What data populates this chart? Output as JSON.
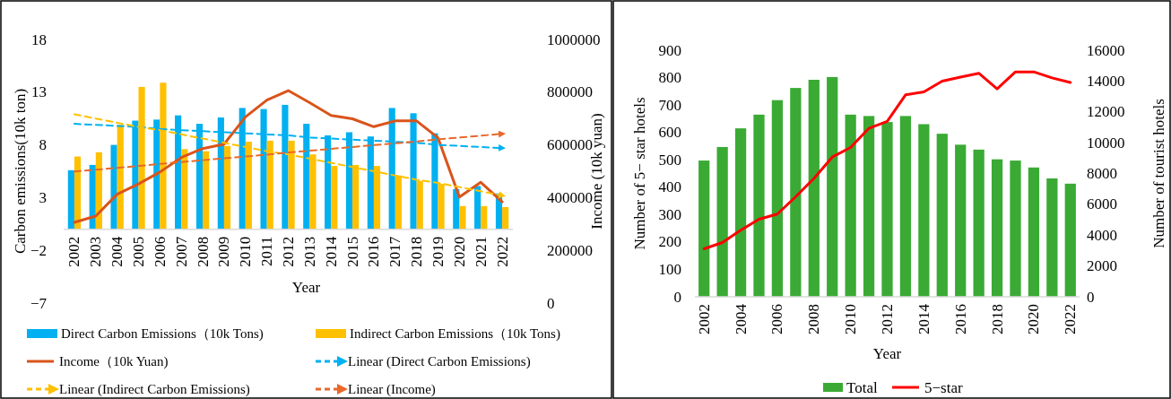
{
  "chart_data": [
    {
      "type": "bar",
      "xlabel": "Year",
      "ylabel": "Carbon emissions(10k ton)",
      "y2label": "Income (10k yuan)",
      "categories": [
        "2002",
        "2003",
        "2004",
        "2005",
        "2006",
        "2007",
        "2008",
        "2009",
        "2010",
        "2011",
        "2012",
        "2013",
        "2014",
        "2015",
        "2016",
        "2017",
        "2018",
        "2019",
        "2020",
        "2021",
        "2022"
      ],
      "ylim": [
        -7,
        18
      ],
      "yticks": [
        {
          "value": -7,
          "label": "−7"
        },
        {
          "value": -2,
          "label": "−2"
        },
        3,
        8,
        13,
        18
      ],
      "y2lim": [
        0,
        1000000
      ],
      "y2ticks": [
        0,
        200000,
        400000,
        600000,
        800000,
        1000000
      ],
      "grid": false,
      "legend": "bottom",
      "series": [
        {
          "name": "Direct Carbon Emissions（10k Tons)",
          "color": "#00b0f0",
          "values": [
            5.6,
            6.1,
            8.0,
            10.3,
            10.4,
            10.8,
            10.0,
            10.6,
            11.5,
            11.4,
            11.8,
            10.0,
            8.9,
            9.2,
            8.8,
            11.5,
            11.0,
            9.1,
            3.8,
            4.1,
            3.4
          ]
        },
        {
          "name": "Indirect Carbon Emissions（10k Tons)",
          "color": "#ffc000",
          "values": [
            6.9,
            7.3,
            9.9,
            13.5,
            13.9,
            7.6,
            7.4,
            7.9,
            8.3,
            8.4,
            8.4,
            7.1,
            6.0,
            6.1,
            6.0,
            5.1,
            4.6,
            4.3,
            2.2,
            2.2,
            2.1
          ]
        },
        {
          "name": "Income（10k Yuan)",
          "type": "line",
          "axis": "y2",
          "color": "#d9541b",
          "line_style": "solid",
          "values": [
            306000,
            330000,
            413000,
            452000,
            497000,
            552000,
            586000,
            603000,
            706000,
            770000,
            806000,
            760000,
            712000,
            699000,
            669000,
            691000,
            691000,
            627000,
            402000,
            458000,
            384000
          ]
        },
        {
          "name": "Linear (Direct Carbon Emissions)",
          "type": "line",
          "color": "#00b0f0",
          "line_style": "dashed",
          "values": [
            10.0,
            9.9,
            9.8,
            9.7,
            9.5,
            9.4,
            9.3,
            9.2,
            9.1,
            9.0,
            8.9,
            8.7,
            8.6,
            8.5,
            8.4,
            8.3,
            8.2,
            8.0,
            7.9,
            7.8,
            7.7
          ]
        },
        {
          "name": "Linear (Indirect Carbon Emissions)",
          "type": "line",
          "color": "#ffc000",
          "line_style": "dashed",
          "values": [
            10.9,
            10.5,
            10.1,
            9.7,
            9.4,
            9.0,
            8.6,
            8.2,
            7.8,
            7.4,
            7.1,
            6.7,
            6.3,
            5.9,
            5.5,
            5.1,
            4.7,
            4.4,
            4.0,
            3.6,
            3.2
          ]
        },
        {
          "name": "Linear (Income)",
          "type": "line",
          "axis": "y2",
          "color": "#e8692a",
          "line_style": "dashed",
          "values": [
            499000,
            506000,
            513000,
            520000,
            528000,
            535000,
            542000,
            549000,
            556000,
            563000,
            571000,
            578000,
            585000,
            592000,
            599000,
            606000,
            613000,
            621000,
            628000,
            635000,
            642000
          ]
        }
      ]
    },
    {
      "type": "bar",
      "xlabel": "Year",
      "ylabel": "Number of 5− star hotels",
      "y2label": "Number of tourist hotels",
      "categories": [
        "2002",
        null,
        "2004",
        null,
        "2006",
        null,
        "2008",
        null,
        "2010",
        null,
        "2012",
        null,
        "2014",
        null,
        "2016",
        null,
        "2018",
        null,
        "2020",
        null,
        "2022"
      ],
      "ylim": [
        0,
        900
      ],
      "yticks": [
        0,
        100,
        200,
        300,
        400,
        500,
        600,
        700,
        800,
        900
      ],
      "y2lim": [
        0,
        16000
      ],
      "y2ticks": [
        0,
        2000,
        4000,
        6000,
        8000,
        10000,
        12000,
        14000,
        16000
      ],
      "grid": false,
      "legend": "bottom",
      "series": [
        {
          "name": "Total",
          "axis": "y2",
          "color": "#3aaa35",
          "values": [
            8840,
            9720,
            10930,
            11820,
            12760,
            13550,
            14080,
            14260,
            11820,
            11730,
            11340,
            11730,
            11200,
            10580,
            9870,
            9550,
            8920,
            8840,
            8390,
            7680,
            7340
          ]
        },
        {
          "name": "5−star",
          "type": "line",
          "color": "#ff0000",
          "line_style": "solid",
          "values": [
            175,
            198,
            243,
            283,
            302,
            365,
            432,
            510,
            545,
            615,
            640,
            737,
            748,
            787,
            802,
            816,
            759,
            821,
            821,
            799,
            782
          ]
        }
      ]
    }
  ]
}
